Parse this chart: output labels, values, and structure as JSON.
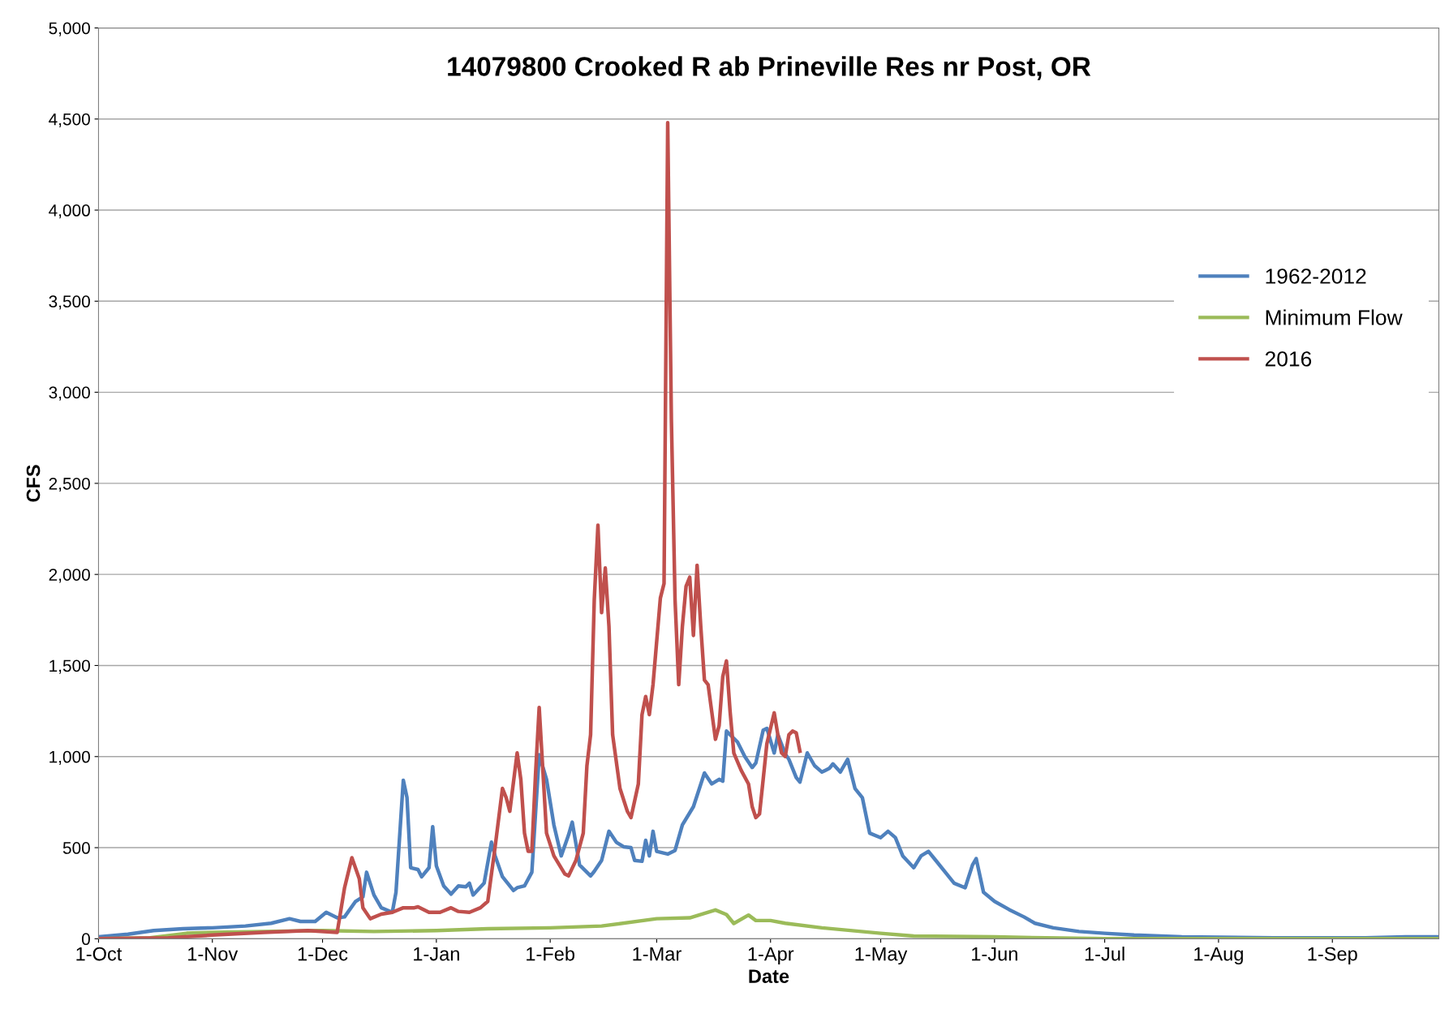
{
  "chart_data": {
    "type": "line",
    "title": "14079800 Crooked R ab Prineville Res nr Post, OR",
    "xlabel": "Date",
    "ylabel": "CFS",
    "ylim": [
      0,
      5000
    ],
    "yticks": [
      0,
      500,
      {
        "value": 1000,
        "label": "1,000"
      },
      {
        "value": 1500,
        "label": "1,500"
      },
      {
        "value": 2000,
        "label": "2,000"
      },
      {
        "value": 2500,
        "label": "2,500"
      },
      {
        "value": 3000,
        "label": "3,000"
      },
      {
        "value": 3500,
        "label": "3,500"
      },
      {
        "value": 4000,
        "label": "4,000"
      },
      {
        "value": 4500,
        "label": "4,500"
      },
      {
        "value": 5000,
        "label": "5,000"
      }
    ],
    "xlim": [
      "2015-10-01",
      "2016-09-30"
    ],
    "xticks": [
      {
        "value": "2015-10-01",
        "label": "1-Oct"
      },
      {
        "value": "2015-11-01",
        "label": "1-Nov"
      },
      {
        "value": "2015-12-01",
        "label": "1-Dec"
      },
      {
        "value": "2016-01-01",
        "label": "1-Jan"
      },
      {
        "value": "2016-02-01",
        "label": "1-Feb"
      },
      {
        "value": "2016-03-01",
        "label": "1-Mar"
      },
      {
        "value": "2016-04-01",
        "label": "1-Apr"
      },
      {
        "value": "2016-05-01",
        "label": "1-May"
      },
      {
        "value": "2016-06-01",
        "label": "1-Jun"
      },
      {
        "value": "2016-07-01",
        "label": "1-Jul"
      },
      {
        "value": "2016-08-01",
        "label": "1-Aug"
      },
      {
        "value": "2016-09-01",
        "label": "1-Sep"
      }
    ],
    "grid": "y",
    "legend": "right",
    "marker": "none",
    "line_style": "solid",
    "series": [
      {
        "name": "1962-2012",
        "color": "#4f81bd",
        "x": [
          "2015-10-01",
          "2015-10-09",
          "2015-10-16",
          "2015-10-24",
          "2015-11-01",
          "2015-11-10",
          "2015-11-17",
          "2015-11-22",
          "2015-11-25",
          "2015-11-29",
          "2015-12-02",
          "2015-12-05",
          "2015-12-07",
          "2015-12-10",
          "2015-12-12",
          "2015-12-13",
          "2015-12-15",
          "2015-12-17",
          "2015-12-20",
          "2015-12-21",
          "2015-12-23",
          "2015-12-24",
          "2015-12-25",
          "2015-12-27",
          "2015-12-28",
          "2015-12-30",
          "2015-12-31",
          "2016-01-01",
          "2016-01-03",
          "2016-01-05",
          "2016-01-07",
          "2016-01-09",
          "2016-01-10",
          "2016-01-11",
          "2016-01-14",
          "2016-01-16",
          "2016-01-17",
          "2016-01-19",
          "2016-01-22",
          "2016-01-23",
          "2016-01-25",
          "2016-01-27",
          "2016-01-29",
          "2016-01-31",
          "2016-02-02",
          "2016-02-04",
          "2016-02-06",
          "2016-02-07",
          "2016-02-09",
          "2016-02-12",
          "2016-02-13",
          "2016-02-15",
          "2016-02-17",
          "2016-02-19",
          "2016-02-21",
          "2016-02-23",
          "2016-02-24",
          "2016-02-26",
          "2016-02-27",
          "2016-02-28",
          "2016-02-29",
          "2016-03-01",
          "2016-03-04",
          "2016-03-06",
          "2016-03-08",
          "2016-03-11",
          "2016-03-14",
          "2016-03-16",
          "2016-03-18",
          "2016-03-19",
          "2016-03-20",
          "2016-03-23",
          "2016-03-25",
          "2016-03-27",
          "2016-03-28",
          "2016-03-30",
          "2016-03-31",
          "2016-04-02",
          "2016-04-03",
          "2016-04-05",
          "2016-04-06",
          "2016-04-08",
          "2016-04-09",
          "2016-04-11",
          "2016-04-13",
          "2016-04-15",
          "2016-04-17",
          "2016-04-18",
          "2016-04-20",
          "2016-04-22",
          "2016-04-24",
          "2016-04-26",
          "2016-04-28",
          "2016-05-01",
          "2016-05-03",
          "2016-05-05",
          "2016-05-07",
          "2016-05-10",
          "2016-05-12",
          "2016-05-14",
          "2016-05-16",
          "2016-05-19",
          "2016-05-21",
          "2016-05-24",
          "2016-05-26",
          "2016-05-27",
          "2016-05-29",
          "2016-06-01",
          "2016-06-05",
          "2016-06-09",
          "2016-06-12",
          "2016-06-17",
          "2016-06-24",
          "2016-07-01",
          "2016-07-09",
          "2016-07-22",
          "2016-08-16",
          "2016-09-10",
          "2016-09-21",
          "2016-09-30"
        ],
        "values": [
          10,
          25,
          45,
          55,
          60,
          70,
          85,
          110,
          95,
          95,
          145,
          115,
          120,
          205,
          230,
          365,
          240,
          170,
          145,
          255,
          870,
          775,
          390,
          380,
          340,
          390,
          615,
          400,
          290,
          245,
          290,
          285,
          305,
          240,
          305,
          530,
          455,
          340,
          265,
          280,
          290,
          365,
          1010,
          875,
          625,
          455,
          570,
          640,
          405,
          345,
          370,
          430,
          590,
          530,
          505,
          500,
          430,
          425,
          540,
          455,
          590,
          480,
          465,
          485,
          625,
          725,
          910,
          850,
          875,
          865,
          1140,
          1080,
          1000,
          940,
          965,
          1145,
          1155,
          1020,
          1120,
          1015,
          985,
          885,
          860,
          1020,
          950,
          915,
          935,
          960,
          915,
          985,
          825,
          775,
          580,
          555,
          590,
          555,
          455,
          390,
          455,
          480,
          430,
          355,
          305,
          280,
          405,
          440,
          255,
          205,
          160,
          120,
          85,
          60,
          40,
          30,
          20,
          10,
          5,
          5,
          10,
          10
        ]
      },
      {
        "name": "Minimum Flow",
        "color": "#9bbb59",
        "x": [
          "2015-10-01",
          "2015-10-15",
          "2015-10-25",
          "2015-11-01",
          "2015-11-15",
          "2015-12-01",
          "2015-12-15",
          "2016-01-01",
          "2016-01-15",
          "2016-02-01",
          "2016-02-15",
          "2016-03-01",
          "2016-03-10",
          "2016-03-17",
          "2016-03-20",
          "2016-03-22",
          "2016-03-26",
          "2016-03-28",
          "2016-04-01",
          "2016-04-05",
          "2016-04-15",
          "2016-05-01",
          "2016-05-10",
          "2016-06-01",
          "2016-06-15",
          "2016-07-01",
          "2016-09-30"
        ],
        "values": [
          0,
          5,
          30,
          35,
          40,
          45,
          40,
          45,
          55,
          60,
          70,
          110,
          115,
          158,
          133,
          84,
          130,
          100,
          100,
          85,
          60,
          30,
          15,
          10,
          5,
          0,
          0
        ]
      },
      {
        "name": "2016",
        "color": "#c0504d",
        "x": [
          "2015-10-01",
          "2015-10-20",
          "2015-11-01",
          "2015-11-15",
          "2015-11-27",
          "2015-12-05",
          "2015-12-07",
          "2015-12-09",
          "2015-12-11",
          "2015-12-12",
          "2015-12-14",
          "2015-12-17",
          "2015-12-20",
          "2015-12-23",
          "2015-12-26",
          "2015-12-27",
          "2015-12-30",
          "2016-01-02",
          "2016-01-05",
          "2016-01-07",
          "2016-01-10",
          "2016-01-13",
          "2016-01-15",
          "2016-01-17",
          "2016-01-19",
          "2016-01-20",
          "2016-01-21",
          "2016-01-23",
          "2016-01-24",
          "2016-01-25",
          "2016-01-26",
          "2016-01-27",
          "2016-01-28",
          "2016-01-29",
          "2016-01-30",
          "2016-01-31",
          "2016-02-02",
          "2016-02-05",
          "2016-02-06",
          "2016-02-08",
          "2016-02-10",
          "2016-02-11",
          "2016-02-12",
          "2016-02-13",
          "2016-02-14",
          "2016-02-15",
          "2016-02-16",
          "2016-02-17",
          "2016-02-18",
          "2016-02-20",
          "2016-02-22",
          "2016-02-23",
          "2016-02-25",
          "2016-02-26",
          "2016-02-27",
          "2016-02-28",
          "2016-02-29",
          "2016-03-02",
          "2016-03-03",
          "2016-03-04",
          "2016-03-05",
          "2016-03-06",
          "2016-03-07",
          "2016-03-08",
          "2016-03-09",
          "2016-03-10",
          "2016-03-11",
          "2016-03-12",
          "2016-03-13",
          "2016-03-14",
          "2016-03-15",
          "2016-03-16",
          "2016-03-17",
          "2016-03-18",
          "2016-03-19",
          "2016-03-20",
          "2016-03-21",
          "2016-03-22",
          "2016-03-24",
          "2016-03-26",
          "2016-03-27",
          "2016-03-28",
          "2016-03-29",
          "2016-03-30",
          "2016-03-31",
          "2016-04-02",
          "2016-04-03",
          "2016-04-04",
          "2016-04-05",
          "2016-04-06",
          "2016-04-07",
          "2016-04-08",
          "2016-04-09"
        ],
        "values": [
          0,
          5,
          20,
          35,
          45,
          35,
          280,
          445,
          330,
          170,
          110,
          135,
          145,
          170,
          170,
          175,
          145,
          145,
          170,
          150,
          145,
          170,
          205,
          505,
          825,
          775,
          700,
          1020,
          875,
          580,
          480,
          480,
          900,
          1270,
          925,
          580,
          455,
          355,
          345,
          430,
          580,
          950,
          1120,
          1860,
          2270,
          1790,
          2035,
          1715,
          1120,
          825,
          700,
          665,
          850,
          1230,
          1330,
          1230,
          1395,
          1870,
          1950,
          4480,
          2850,
          1860,
          1395,
          1715,
          1935,
          1985,
          1665,
          2050,
          1715,
          1420,
          1395,
          1245,
          1095,
          1170,
          1440,
          1525,
          1245,
          1020,
          925,
          850,
          725,
          665,
          685,
          875,
          1070,
          1240,
          1120,
          1020,
          1000,
          1120,
          1140,
          1130,
          1030
        ]
      }
    ]
  }
}
